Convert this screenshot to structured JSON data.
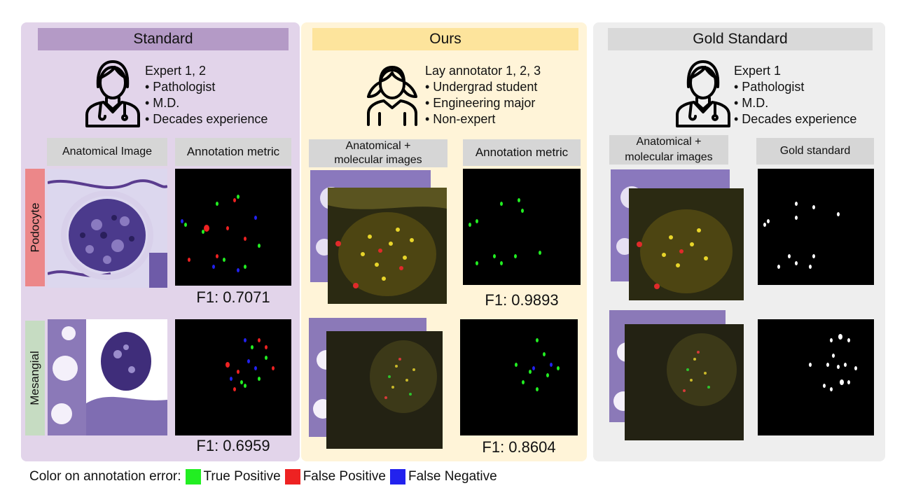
{
  "panels": {
    "standard": {
      "title": "Standard",
      "role": [
        "Expert 1, 2",
        "• Pathologist",
        "• M.D.",
        "• Decades experience"
      ],
      "col1": "Anatomical Image",
      "col2": "Annotation metric",
      "f1_top": "F1: 0.7071",
      "f1_bottom": "F1: 0.6959"
    },
    "ours": {
      "title": "Ours",
      "role": [
        "Lay annotator 1, 2, 3",
        "• Undergrad student",
        "• Engineering major",
        "• Non-expert"
      ],
      "col1": "Anatomical +\nmolecular images",
      "col2": "Annotation metric",
      "f1_top": "F1: 0.9893",
      "f1_bottom": "F1: 0.8604"
    },
    "gold": {
      "title": "Gold Standard",
      "role": [
        "Expert 1",
        "• Pathologist",
        "• M.D.",
        "• Decades experience"
      ],
      "col1": "Anatomical +\nmolecular images",
      "col2": "Gold standard"
    }
  },
  "rows": {
    "podocyte": "Podocyte",
    "mesangial": "Mesangial"
  },
  "legend": {
    "prefix": "Color on annotation error:",
    "items": [
      {
        "label": "True Positive",
        "color": "#22ee22"
      },
      {
        "label": "False Positive",
        "color": "#ee2222"
      },
      {
        "label": "False Negative",
        "color": "#2222ee"
      }
    ]
  },
  "colors": {
    "standard_bg": "#e2d4ea",
    "ours_bg": "#fff4d8",
    "gold_bg": "#eeeeee",
    "podocyte": "#ec8789",
    "mesangial": "#c6dcc2"
  }
}
